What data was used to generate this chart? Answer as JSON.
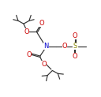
{
  "bg_color": "#ffffff",
  "line_color": "#333333",
  "atom_colors": {
    "N": "#0000cc",
    "O": "#cc0000",
    "S": "#888800",
    "C": "#333333"
  },
  "font_size_atom": 6.0,
  "lw": 0.85
}
